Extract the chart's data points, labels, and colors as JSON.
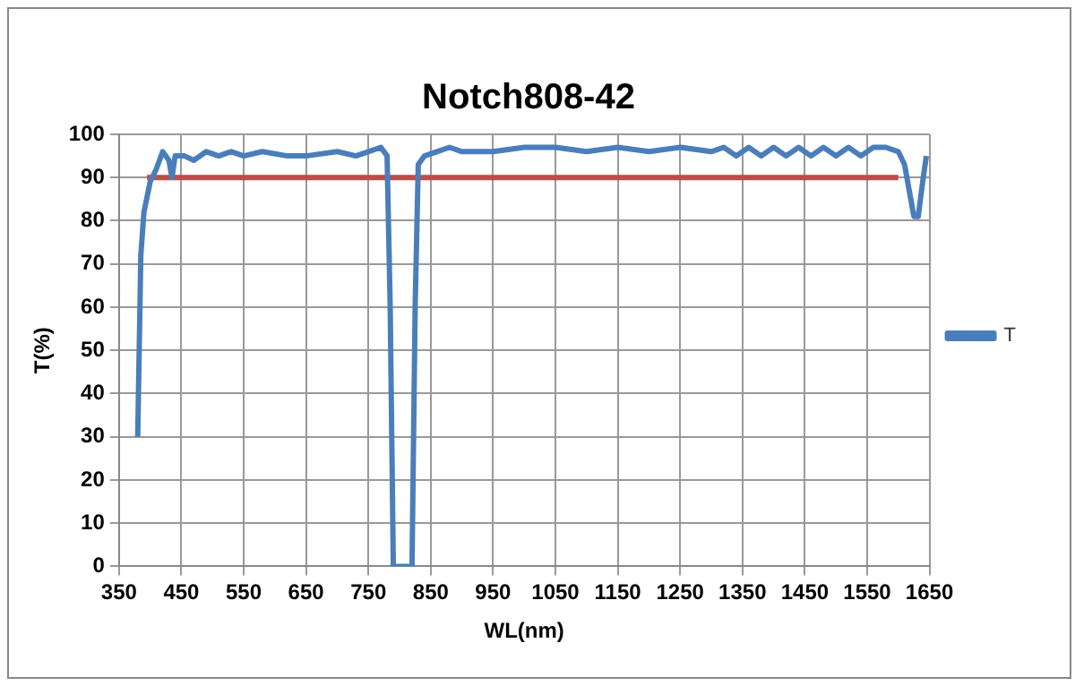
{
  "chart_data": {
    "type": "line",
    "title": "Notch808-42",
    "xlabel": "WL(nm)",
    "ylabel": "T(%)",
    "xlim": [
      350,
      1650
    ],
    "xticks": [
      350,
      450,
      550,
      650,
      750,
      850,
      950,
      1050,
      1150,
      1250,
      1350,
      1450,
      1550,
      1650
    ],
    "ylim": [
      0,
      100
    ],
    "yticks": [
      0,
      10,
      20,
      30,
      40,
      50,
      60,
      70,
      80,
      90,
      100
    ],
    "grid": true,
    "legend": "right",
    "marker": "none",
    "line_style": "solid",
    "series": [
      {
        "name": "T",
        "color": "#4a7ebb",
        "x": [
          380,
          385,
          390,
          400,
          410,
          420,
          430,
          435,
          440,
          455,
          470,
          490,
          510,
          530,
          550,
          580,
          620,
          650,
          700,
          730,
          750,
          770,
          780,
          785,
          790,
          820,
          825,
          830,
          840,
          860,
          880,
          900,
          950,
          1000,
          1050,
          1100,
          1150,
          1200,
          1250,
          1300,
          1320,
          1340,
          1360,
          1380,
          1400,
          1420,
          1440,
          1460,
          1480,
          1500,
          1520,
          1540,
          1560,
          1580,
          1600,
          1610,
          1620,
          1625,
          1632,
          1640,
          1645
        ],
        "values": [
          30,
          72,
          82,
          89,
          92,
          96,
          94,
          90,
          95,
          95,
          94,
          96,
          95,
          96,
          95,
          96,
          95,
          95,
          96,
          95,
          96,
          97,
          95,
          60,
          0,
          0,
          60,
          93,
          95,
          96,
          97,
          96,
          96,
          97,
          97,
          96,
          97,
          96,
          97,
          96,
          97,
          95,
          97,
          95,
          97,
          95,
          97,
          95,
          97,
          95,
          97,
          95,
          97,
          97,
          96,
          93,
          85,
          81,
          81,
          90,
          95
        ]
      },
      {
        "color": "#be4b48",
        "x": [
          395,
          1600
        ],
        "values": [
          90,
          90
        ]
      }
    ]
  }
}
